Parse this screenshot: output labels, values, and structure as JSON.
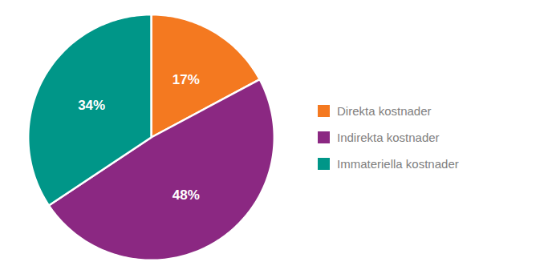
{
  "chart_data": {
    "type": "pie",
    "categories": [
      "Direkta kostnader",
      "Indirekta kostnader",
      "Immateriella kostnader"
    ],
    "values": [
      17,
      48,
      34
    ],
    "value_labels": [
      "17%",
      "48%",
      "34%"
    ],
    "colors": [
      "#F47920",
      "#8B2882",
      "#009688"
    ],
    "data_labels": true,
    "legend": "right"
  }
}
